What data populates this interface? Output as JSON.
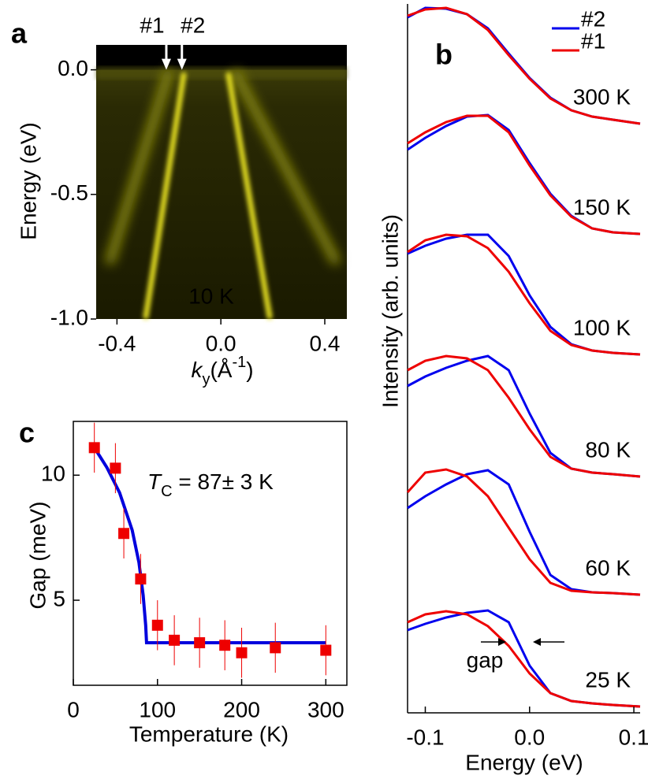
{
  "chart_data": [
    {
      "type": "image",
      "panel_label": "a",
      "ylabel": "Energy (eV)",
      "xlabel_parts": [
        "k",
        "y",
        "(Å",
        "-1",
        ")"
      ],
      "xlim": [
        -0.48,
        0.485
      ],
      "ylim": [
        -1.0,
        0.1
      ],
      "xticks": [
        -0.4,
        {
          "value": 0,
          "label": "0.0"
        },
        0.4
      ],
      "yticks": [
        {
          "value": 0,
          "label": "0.0"
        },
        -0.5,
        {
          "value": -1,
          "label": "-1.0"
        }
      ],
      "annotations": [
        {
          "text": "#1",
          "color": "#ee1111",
          "x": -0.21
        },
        {
          "text": "#2",
          "color": "#3333cc",
          "x": -0.15
        }
      ],
      "temperature_label": "10 K"
    },
    {
      "type": "line",
      "panel_label": "b",
      "ylabel": "Intensity (arb. units)",
      "xlabel": "Energy (eV)",
      "x": [
        -0.117,
        -0.1,
        -0.08,
        -0.06,
        -0.04,
        -0.02,
        0,
        0.02,
        0.04,
        0.06,
        0.08,
        0.106
      ],
      "xlim": [
        -0.117,
        0.106
      ],
      "ylim": [
        0,
        9
      ],
      "xticks": [
        -0.1,
        {
          "value": 0,
          "label": "0.0"
        },
        0.1
      ],
      "legend": "upper right",
      "curve_labels": [
        "300 K",
        "150 K",
        "100 K",
        "80 K",
        "60 K",
        "25 K"
      ],
      "series": [
        {
          "name": "#2",
          "color": "#0000ee",
          "values": [
            [
              8.83,
              8.95,
              8.94,
              8.87,
              8.69,
              8.37,
              8.06,
              7.81,
              7.65,
              7.57,
              7.53,
              7.48
            ],
            [
              7.15,
              7.3,
              7.45,
              7.57,
              7.59,
              7.4,
              6.98,
              6.59,
              6.31,
              6.15,
              6.1,
              6.08
            ],
            [
              5.83,
              5.93,
              6.02,
              6.07,
              6.07,
              5.8,
              5.3,
              4.9,
              4.68,
              4.6,
              4.57,
              4.55
            ],
            [
              4.15,
              4.27,
              4.38,
              4.47,
              4.53,
              4.35,
              3.8,
              3.3,
              3.1,
              3.05,
              3.03,
              3.0
            ],
            [
              2.6,
              2.75,
              2.9,
              3.03,
              3.08,
              2.9,
              2.3,
              1.75,
              1.57,
              1.53,
              1.52,
              1.5
            ],
            [
              1.05,
              1.13,
              1.21,
              1.27,
              1.3,
              1.15,
              0.6,
              0.25,
              0.15,
              0.12,
              0.1,
              0.08
            ]
          ]
        },
        {
          "name": "#1",
          "color": "#ee0000",
          "values": [
            [
              8.85,
              8.93,
              8.95,
              8.87,
              8.67,
              8.35,
              8.05,
              7.8,
              7.65,
              7.57,
              7.53,
              7.48
            ],
            [
              7.23,
              7.37,
              7.5,
              7.58,
              7.58,
              7.37,
              6.95,
              6.57,
              6.3,
              6.15,
              6.1,
              6.08
            ],
            [
              5.85,
              6.0,
              6.07,
              6.05,
              5.9,
              5.6,
              5.2,
              4.85,
              4.67,
              4.6,
              4.57,
              4.55
            ],
            [
              4.35,
              4.47,
              4.53,
              4.5,
              4.35,
              4.0,
              3.6,
              3.25,
              3.1,
              3.05,
              3.03,
              3.0
            ],
            [
              2.8,
              3.05,
              3.09,
              3.0,
              2.75,
              2.35,
              1.95,
              1.65,
              1.55,
              1.53,
              1.52,
              1.5
            ],
            [
              1.15,
              1.25,
              1.29,
              1.25,
              1.1,
              0.85,
              0.5,
              0.25,
              0.15,
              0.12,
              0.1,
              0.08
            ]
          ]
        }
      ],
      "annotation": "gap"
    },
    {
      "type": "scatter",
      "panel_label": "c",
      "xlabel": "Temperature (K)",
      "ylabel": "Gap (meV)",
      "xlim": [
        0,
        325
      ],
      "ylim": [
        1.6,
        12.15
      ],
      "xticks": [
        0,
        100,
        200,
        300
      ],
      "yticks": [
        5,
        10
      ],
      "x": [
        25,
        50,
        60,
        80,
        100,
        120,
        150,
        180,
        200,
        240,
        300
      ],
      "values": [
        11.1,
        10.28,
        7.67,
        5.85,
        4.0,
        3.4,
        3.3,
        3.2,
        2.9,
        3.1,
        3.0
      ],
      "errors": [
        1.0,
        1.0,
        1.0,
        1.0,
        1.0,
        1.0,
        1.0,
        1.0,
        1.0,
        1.0,
        1.0
      ],
      "color": "#ee0000",
      "fit": {
        "color": "#0000dd",
        "x": [
          25,
          40,
          55,
          70,
          78,
          83,
          86,
          87,
          300
        ],
        "values": [
          11.1,
          10.3,
          9.3,
          7.8,
          6.5,
          5.2,
          4.0,
          3.3,
          3.3
        ]
      },
      "annotation": {
        "symbol": "T",
        "subscript": "C",
        "text": " = 87± 3 K"
      }
    }
  ]
}
